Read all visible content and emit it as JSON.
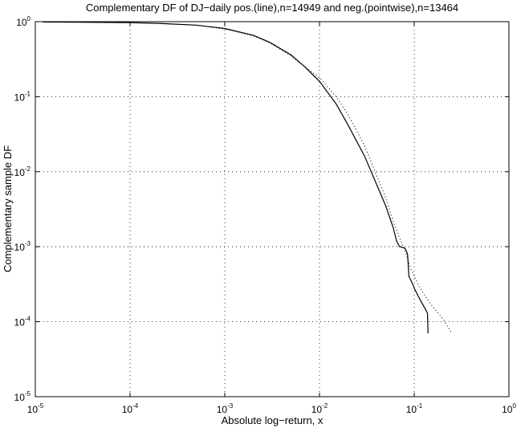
{
  "chart_data": {
    "type": "line",
    "title": "Complementary DF of DJ−daily  pos.(line),n=14949 and neg.(pointwise),n=13464",
    "xlabel": "Absolute log−return, x",
    "ylabel": "Complementary sample DF",
    "xscale": "log",
    "yscale": "log",
    "xlim": [
      1e-05,
      1
    ],
    "ylim": [
      1e-05,
      1
    ],
    "grid": true,
    "x_ticks": [
      {
        "base": "10",
        "exp": "-5",
        "value": 1e-05
      },
      {
        "base": "10",
        "exp": "-4",
        "value": 0.0001
      },
      {
        "base": "10",
        "exp": "-3",
        "value": 0.001
      },
      {
        "base": "10",
        "exp": "-2",
        "value": 0.01
      },
      {
        "base": "10",
        "exp": "-1",
        "value": 0.1
      },
      {
        "base": "10",
        "exp": "0",
        "value": 1
      }
    ],
    "y_ticks": [
      {
        "base": "10",
        "exp": "0",
        "value": 1
      },
      {
        "base": "10",
        "exp": "-1",
        "value": 0.1
      },
      {
        "base": "10",
        "exp": "-2",
        "value": 0.01
      },
      {
        "base": "10",
        "exp": "-3",
        "value": 0.001
      },
      {
        "base": "10",
        "exp": "-4",
        "value": 0.0001
      },
      {
        "base": "10",
        "exp": "-5",
        "value": 1e-05
      }
    ],
    "series": [
      {
        "style": "solid",
        "color": "#000000",
        "points": [
          [
            1.2e-05,
            0.99
          ],
          [
            3e-05,
            0.985
          ],
          [
            0.0001,
            0.97
          ],
          [
            0.0002,
            0.95
          ],
          [
            0.0005,
            0.9
          ],
          [
            0.001,
            0.81
          ],
          [
            0.002,
            0.66
          ],
          [
            0.003,
            0.53
          ],
          [
            0.005,
            0.36
          ],
          [
            0.007,
            0.25
          ],
          [
            0.01,
            0.16
          ],
          [
            0.015,
            0.08
          ],
          [
            0.02,
            0.042
          ],
          [
            0.03,
            0.016
          ],
          [
            0.04,
            0.0068
          ],
          [
            0.05,
            0.0035
          ],
          [
            0.06,
            0.0018
          ],
          [
            0.065,
            0.0012
          ],
          [
            0.07,
            0.001
          ],
          [
            0.075,
            0.00098
          ],
          [
            0.08,
            0.00095
          ],
          [
            0.085,
            0.0008
          ],
          [
            0.088,
            0.0004
          ],
          [
            0.095,
            0.00033
          ],
          [
            0.1,
            0.00028
          ],
          [
            0.11,
            0.00022
          ],
          [
            0.12,
            0.00018
          ],
          [
            0.13,
            0.00015
          ],
          [
            0.138,
            0.00013
          ],
          [
            0.14,
            7e-05
          ]
        ]
      },
      {
        "style": "dotted",
        "color": "#000000",
        "points": [
          [
            1.2e-05,
            0.99
          ],
          [
            3e-05,
            0.985
          ],
          [
            0.0001,
            0.97
          ],
          [
            0.0002,
            0.95
          ],
          [
            0.0005,
            0.9
          ],
          [
            0.001,
            0.8
          ],
          [
            0.002,
            0.65
          ],
          [
            0.003,
            0.52
          ],
          [
            0.005,
            0.35
          ],
          [
            0.007,
            0.25
          ],
          [
            0.01,
            0.18
          ],
          [
            0.015,
            0.1
          ],
          [
            0.02,
            0.058
          ],
          [
            0.03,
            0.022
          ],
          [
            0.04,
            0.009
          ],
          [
            0.05,
            0.0045
          ],
          [
            0.06,
            0.0022
          ],
          [
            0.07,
            0.0013
          ],
          [
            0.08,
            0.0009
          ],
          [
            0.09,
            0.00055
          ],
          [
            0.1,
            0.0004
          ],
          [
            0.12,
            0.00026
          ],
          [
            0.15,
            0.00017
          ],
          [
            0.2,
            0.00011
          ],
          [
            0.25,
            7e-05
          ]
        ]
      }
    ]
  }
}
